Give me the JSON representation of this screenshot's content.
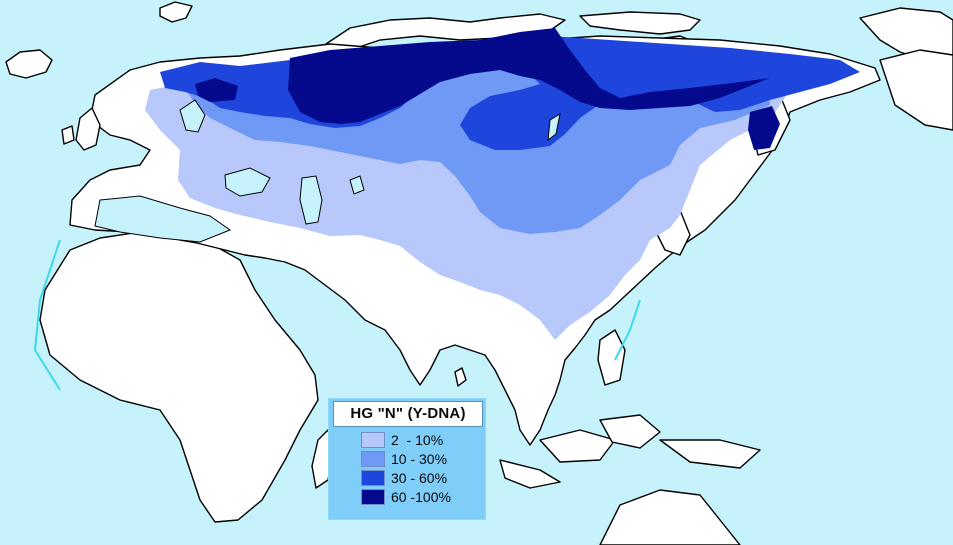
{
  "colors": {
    "sea": "#c6f2fb",
    "land": "#ffffff",
    "coastal_shelf": "#3fd8ea",
    "band_2_10": "#b9c8fa",
    "band_10_30": "#6f99f4",
    "band_30_60": "#1f46dc",
    "band_60_100": "#050a8c"
  },
  "legend": {
    "title": "HG \"N\" (Y-DNA)",
    "items": [
      {
        "label": "2  - 10%",
        "color": "#b9c8fa"
      },
      {
        "label": "10 - 30%",
        "color": "#6f99f4"
      },
      {
        "label": "30 - 60%",
        "color": "#1f46dc"
      },
      {
        "label": "60 -100%",
        "color": "#050a8c"
      }
    ]
  }
}
